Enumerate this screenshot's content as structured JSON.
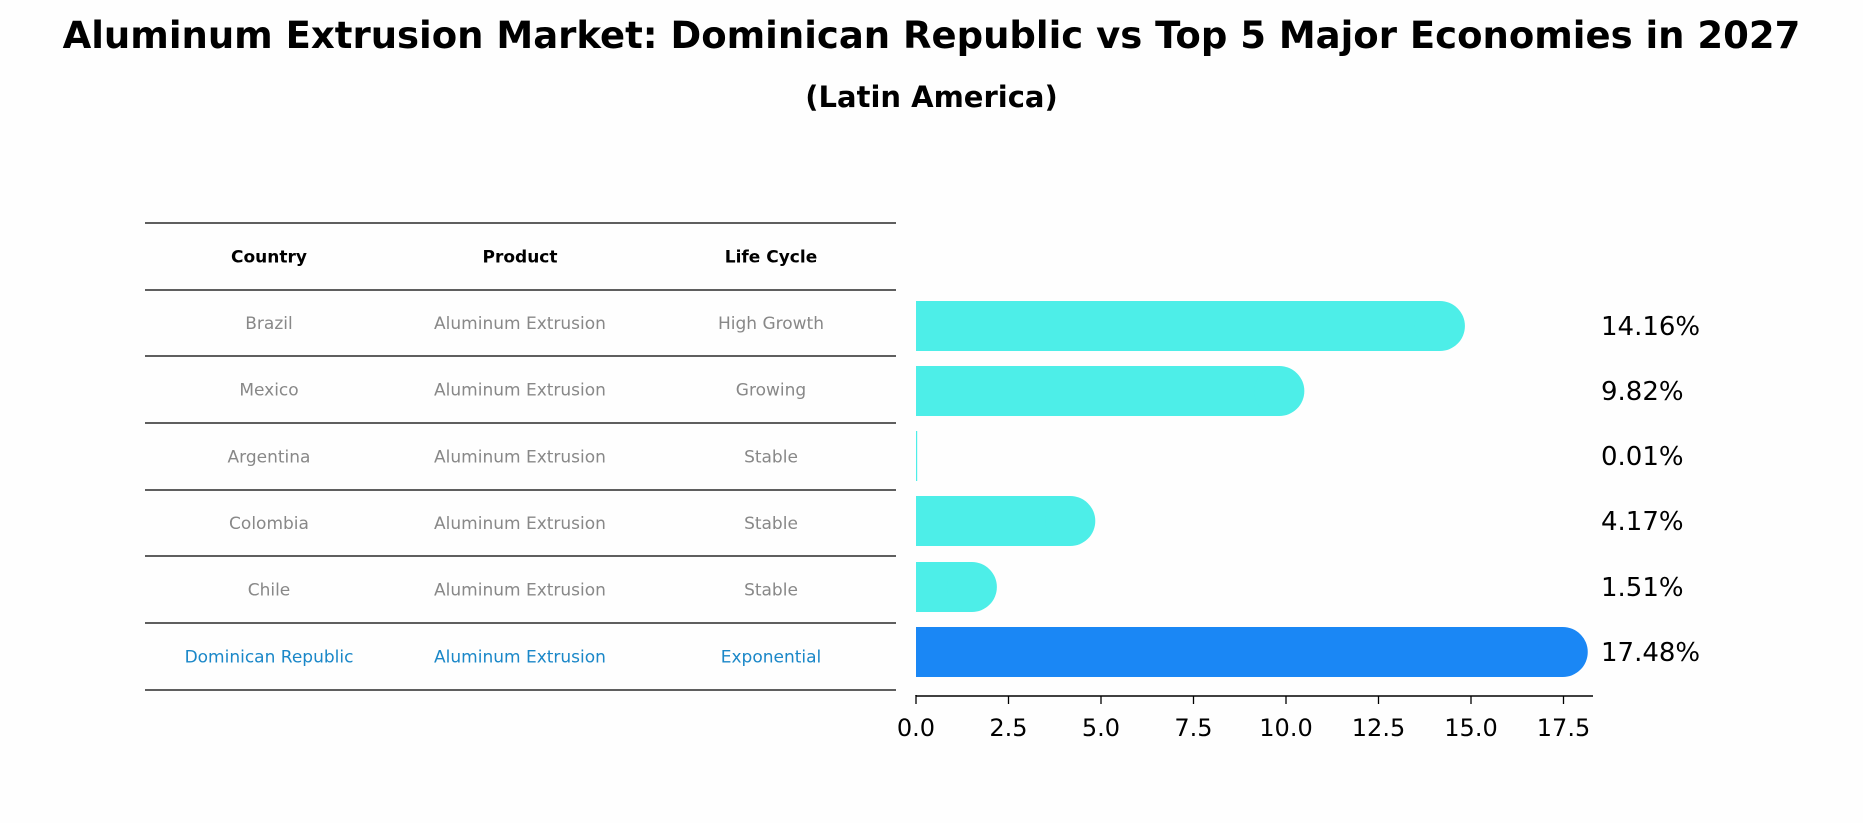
{
  "title": "Aluminum Extrusion Market: Dominican Republic vs Top 5 Major Economies in 2027",
  "subtitle": "(Latin America)",
  "colors": {
    "bar": "#4deee8",
    "highlight_bar": "#1a87f5",
    "highlight_text": "#1a87c8",
    "muted_text": "#888888"
  },
  "table": {
    "headers": [
      "Country",
      "Product",
      "Life Cycle"
    ],
    "rows": [
      [
        "Brazil",
        "Aluminum Extrusion",
        "High Growth"
      ],
      [
        "Mexico",
        "Aluminum Extrusion",
        "Growing"
      ],
      [
        "Argentina",
        "Aluminum Extrusion",
        "Stable"
      ],
      [
        "Colombia",
        "Aluminum Extrusion",
        "Stable"
      ],
      [
        "Chile",
        "Aluminum Extrusion",
        "Stable"
      ],
      [
        "Dominican Republic",
        "Aluminum Extrusion",
        "Exponential"
      ]
    ],
    "highlight_row": 5
  },
  "chart_data": {
    "type": "bar",
    "orientation": "horizontal",
    "categories": [
      "Brazil",
      "Mexico",
      "Argentina",
      "Colombia",
      "Chile",
      "Dominican Republic"
    ],
    "values": [
      14.16,
      9.82,
      0.01,
      4.17,
      1.51,
      17.48
    ],
    "value_labels": [
      "14.16%",
      "9.82%",
      "0.01%",
      "4.17%",
      "1.51%",
      "17.48%"
    ],
    "highlight_index": 5,
    "xlim": [
      0,
      18.4
    ],
    "xticks": [
      0,
      2.5,
      5,
      7.5,
      10,
      12.5,
      15,
      17.5
    ],
    "xtick_labels": [
      "0.0",
      "2.5",
      "5.0",
      "7.5",
      "10.0",
      "12.5",
      "15.0",
      "17.5"
    ]
  }
}
